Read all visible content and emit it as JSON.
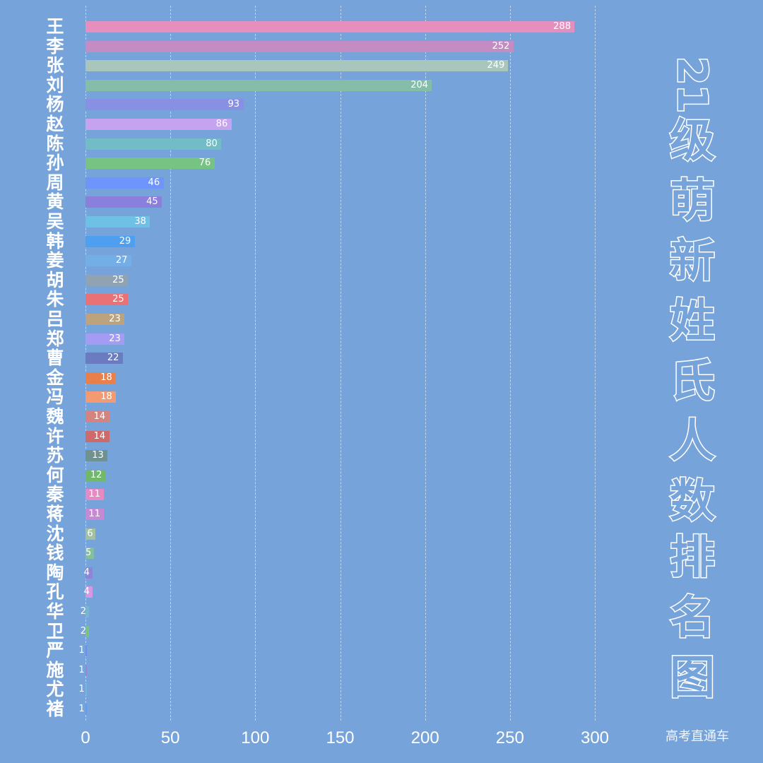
{
  "chart_data": {
    "type": "bar",
    "orientation": "horizontal",
    "title": "21级萌新姓氏人数排名图",
    "xlabel": "",
    "ylabel": "",
    "xlim": [
      0,
      300
    ],
    "xticks": [
      0,
      50,
      100,
      150,
      200,
      250,
      300
    ],
    "grid": "vertical dashed",
    "categories": [
      "王",
      "李",
      "张",
      "刘",
      "杨",
      "赵",
      "陈",
      "孙",
      "周",
      "黄",
      "吴",
      "韩",
      "姜",
      "胡",
      "朱",
      "吕",
      "郑",
      "曹",
      "金",
      "冯",
      "魏",
      "许",
      "苏",
      "何",
      "秦",
      "蒋",
      "沈",
      "钱",
      "陶",
      "孔",
      "华",
      "卫",
      "严",
      "施",
      "尤",
      "褚"
    ],
    "values": [
      288,
      252,
      249,
      204,
      93,
      86,
      80,
      76,
      46,
      45,
      38,
      29,
      27,
      25,
      25,
      23,
      23,
      22,
      18,
      18,
      14,
      14,
      13,
      12,
      11,
      11,
      6,
      5,
      4,
      4,
      2,
      2,
      1,
      1,
      1,
      1
    ],
    "colors": [
      "#e68fbf",
      "#c38cc3",
      "#a9c6bc",
      "#86bda9",
      "#8890e4",
      "#c5a3ee",
      "#71bcc7",
      "#77c384",
      "#6e95fb",
      "#8a7fdc",
      "#6ec0e4",
      "#4f9ff0",
      "#74aee6",
      "#91a3b2",
      "#ea7277",
      "#bca37e",
      "#a49bf5",
      "#6a7bc0",
      "#e9804b",
      "#f39a72",
      "#d4837f",
      "#cf6a6a",
      "#6f918f",
      "#70b96b",
      "#e58bc4",
      "#c58ad3",
      "#a2c1a1",
      "#84bf9e",
      "#8b86d8",
      "#d598e6",
      "#73b9c6",
      "#79c37a",
      "#6d8ef0",
      "#9a86d0",
      "#72b6d8",
      "#5c9ef0"
    ]
  },
  "title_chars": [
    "2",
    "1",
    "级",
    "萌",
    "新",
    "姓",
    "氏",
    "人",
    "数",
    "排",
    "名",
    "图"
  ],
  "watermark": "高考直通车",
  "colors": {
    "background": "#76a3d9",
    "text": "#ffffff"
  }
}
